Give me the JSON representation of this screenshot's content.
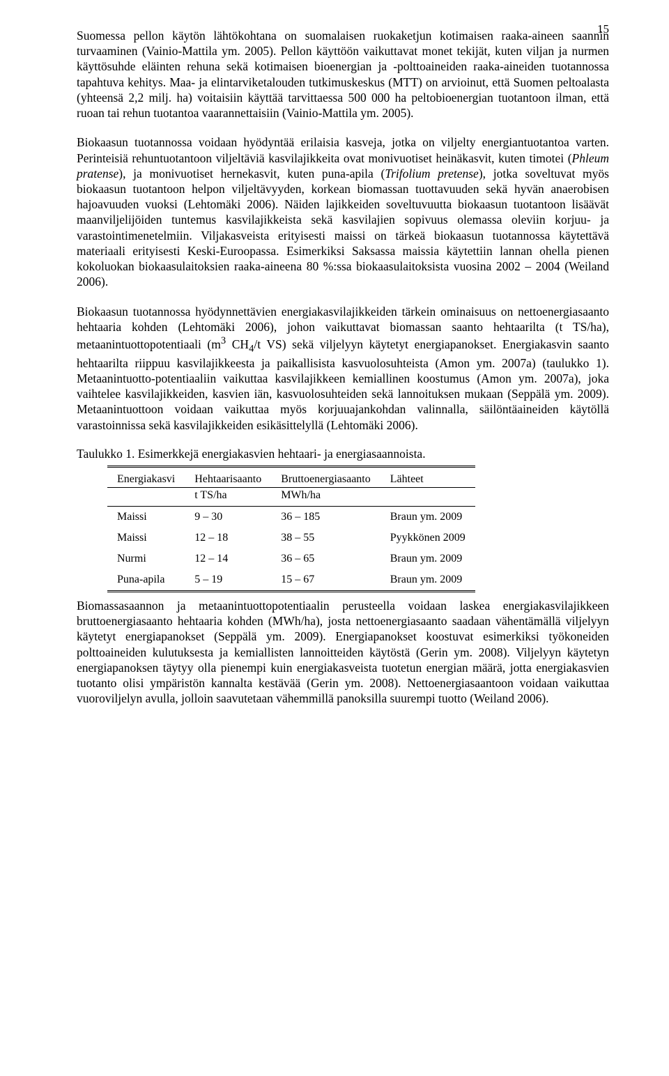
{
  "page_number": "15",
  "paragraphs": {
    "p1": "Suomessa pellon käytön lähtökohtana on suomalaisen ruokaketjun kotimaisen raaka-aineen saannin turvaaminen (Vainio-Mattila ym. 2005). Pellon käyttöön vaikuttavat monet tekijät, kuten viljan ja nurmen käyttösuhde eläinten rehuna sekä kotimaisen bioenergian ja -polttoaineiden raaka-aineiden tuotannossa tapahtuva kehitys. Maa- ja elintarviketalouden tutkimuskeskus (MTT) on arvioinut, että Suomen peltoalasta (yhteensä 2,2 milj. ha) voitaisiin käyttää tarvittaessa 500 000 ha peltobioenergian tuotantoon ilman, että ruoan tai rehun tuotantoa vaarannettaisiin (Vainio-Mattila ym. 2005).",
    "p2_a": "Biokaasun tuotannossa voidaan hyödyntää erilaisia kasveja, jotka on viljelty energiantuotantoa varten. Perinteisiä rehuntuotantoon viljeltäviä kasvilajikkeita ovat monivuotiset heinäkasvit, kuten timotei (",
    "p2_i1": "Phleum pratense",
    "p2_b": "), ja monivuotiset hernekasvit, kuten puna-apila (",
    "p2_i2": "Trifolium pretense",
    "p2_c": "), jotka soveltuvat myös biokaasun tuotantoon helpon viljeltävyyden, korkean biomassan tuottavuuden sekä hyvän anaerobisen hajoavuuden vuoksi (Lehtomäki 2006). Näiden lajikkeiden soveltuvuutta biokaasun tuotantoon lisäävät maanviljelijöiden tuntemus kasvilajikkeista sekä kasvilajien sopivuus olemassa oleviin korjuu- ja varastointimenetelmiin. Viljakasveista erityisesti maissi on tärkeä biokaasun tuotannossa käytettävä materiaali erityisesti Keski-Euroopassa. Esimerkiksi Saksassa maissia käytettiin lannan ohella pienen kokoluokan biokaasulaitoksien raaka-aineena 80 %:ssa biokaasulaitoksista vuosina 2002 – 2004 (Weiland 2006).",
    "p3_a": "Biokaasun tuotannossa hyödynnettävien energiakasvilajikkeiden tärkein ominaisuus on nettoenergiasaanto hehtaaria kohden (Lehtomäki 2006), johon vaikuttavat biomassan saanto hehtaarilta (t TS/ha), metaanintuottopotentiaali (m",
    "p3_sup": "3",
    "p3_b": " CH",
    "p3_sub": "4",
    "p3_c": "/t VS) sekä viljelyyn käytetyt energiapanokset. Energiakasvin saanto hehtaarilta riippuu kasvilajikkeesta ja paikallisista kasvuolosuhteista (Amon ym. 2007a) (taulukko 1). Metaanintuotto-potentiaaliin vaikuttaa kasvilajikkeen kemiallinen koostumus (Amon ym. 2007a), joka vaihtelee kasvilajikkeiden, kasvien iän, kasvuolosuhteiden sekä lannoituksen mukaan (Seppälä ym. 2009). Metaanintuottoon voidaan vaikuttaa myös korjuuajankohdan valinnalla, säilöntäaineiden käytöllä varastoinnissa sekä kasvilajikkeiden esikäsittelyllä (Lehtomäki 2006).",
    "p4": "Biomassasaannon ja metaanintuottopotentiaalin perusteella voidaan laskea energiakasvilajikkeen bruttoenergiasaanto hehtaaria kohden (MWh/ha), josta nettoenergiasaanto saadaan vähentämällä viljelyyn käytetyt energiapanokset (Seppälä ym. 2009). Energiapanokset koostuvat esimerkiksi työkoneiden polttoaineiden kulutuksesta ja kemiallisten lannoitteiden käytöstä (Gerin ym. 2008). Viljelyyn käytetyn energiapanoksen täytyy olla pienempi kuin energiakasveista tuotetun energian määrä, jotta energiakasvien tuotanto olisi ympäristön kannalta kestävää (Gerin ym. 2008). Nettoenergiasaantoon voidaan vaikuttaa vuoroviljelyn avulla, jolloin saavutetaan vähemmillä panoksilla suurempi tuotto (Weiland 2006)."
  },
  "table": {
    "caption": "Taulukko 1. Esimerkkejä energiakasvien hehtaari- ja energiasaannoista.",
    "headers": {
      "c1": "Energiakasvi",
      "c2": "Hehtaarisaanto",
      "c3": "Bruttoenergiasaanto",
      "c4": "Lähteet"
    },
    "units": {
      "c2": "t TS/ha",
      "c3": "MWh/ha"
    },
    "rows": [
      {
        "c1": "Maissi",
        "c2": "9 – 30",
        "c3": "36 – 185",
        "c4": "Braun ym. 2009"
      },
      {
        "c1": "Maissi",
        "c2": "12 – 18",
        "c3": "38 – 55",
        "c4": "Pyykkönen 2009"
      },
      {
        "c1": "Nurmi",
        "c2": "12 – 14",
        "c3": "36 – 65",
        "c4": "Braun ym. 2009"
      },
      {
        "c1": "Puna-apila",
        "c2": "5 – 19",
        "c3": "15 – 67",
        "c4": "Braun ym. 2009"
      }
    ]
  }
}
